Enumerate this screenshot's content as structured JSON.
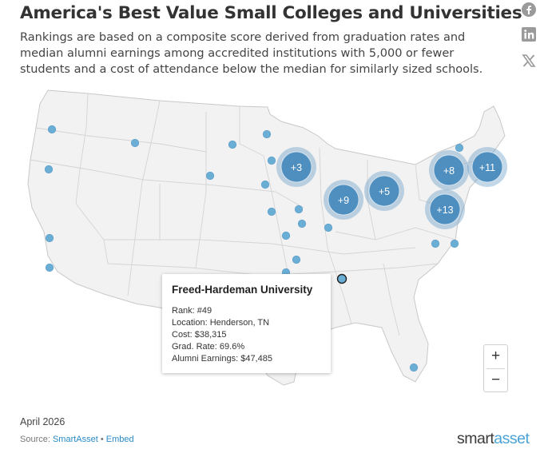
{
  "title": "America's Best Value Small Colleges and Universities",
  "subtitle": "Rankings are based on a composite score derived from graduation rates and median alumni earnings among accredited institutions with 5,000 or fewer students and a cost of attendance below the median for similarly sized schools.",
  "share_icons": [
    "facebook-icon",
    "linkedin-icon",
    "x-icon"
  ],
  "colors": {
    "marker": "#6aaed6",
    "cluster": "#4f8fbf",
    "land": "#f2f2f2",
    "border": "#c8c8c8",
    "brand_accent": "#4aa3d7"
  },
  "map": {
    "clusters": [
      {
        "label": "+3"
      },
      {
        "label": "+9"
      },
      {
        "label": "+5"
      },
      {
        "label": "+8"
      },
      {
        "label": "+11"
      },
      {
        "label": "+13"
      }
    ],
    "selected_marker": "Freed-Hardeman University"
  },
  "tooltip": {
    "name": "Freed-Hardeman University",
    "rank": "Rank: #49",
    "location": "Location: Henderson, TN",
    "cost": "Cost: $38,315",
    "grad_rate": "Grad. Rate: 69.6%",
    "earnings": "Alumni Earnings: $47,485"
  },
  "zoom": {
    "in": "+",
    "out": "−"
  },
  "date": "April 2026",
  "source": {
    "prefix": "Source: ",
    "link": "SmartAsset",
    "separator": " • ",
    "embed": "Embed"
  },
  "logo": {
    "part1": "smart",
    "part2": "asset"
  }
}
